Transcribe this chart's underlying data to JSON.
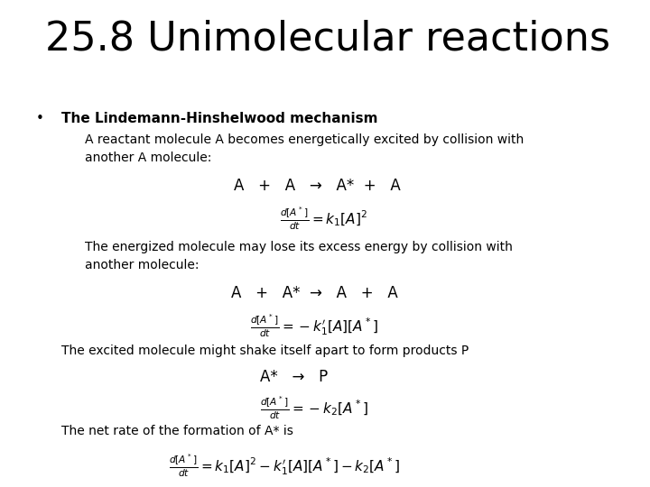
{
  "title": "25.8 Unimolecular reactions",
  "background_color": "#ffffff",
  "text_color": "#000000",
  "title_fontsize": 32,
  "body_fontsize": 11,
  "bullet": "•",
  "bold_heading": "The Lindemann-Hinshelwood mechanism",
  "para1": "A reactant molecule A becomes energetically excited by collision with\nanother A molecule:",
  "reaction1": "A   +   A   →   A*  +   A",
  "formula1": "$\\frac{d[A^*]}{dt} = k_1[A]^2$",
  "para2": "The energized molecule may lose its excess energy by collision with\nanother molecule:",
  "reaction2": "A   +   A*  →   A   +   A",
  "formula2": "$\\frac{d[A^*]}{dt} = -k_1'[A][A^*]$",
  "para3": "The excited molecule might shake itself apart to form products P",
  "reaction3": "A*   →   P",
  "formula3": "$\\frac{d[A^*]}{dt} = -k_2[A^*]$",
  "para4": "The net rate of the formation of A* is",
  "formula4": "$\\frac{d[A^*]}{dt} = k_1[A]^2 - k_1'[A][A^*] - k_2[A^*]$"
}
